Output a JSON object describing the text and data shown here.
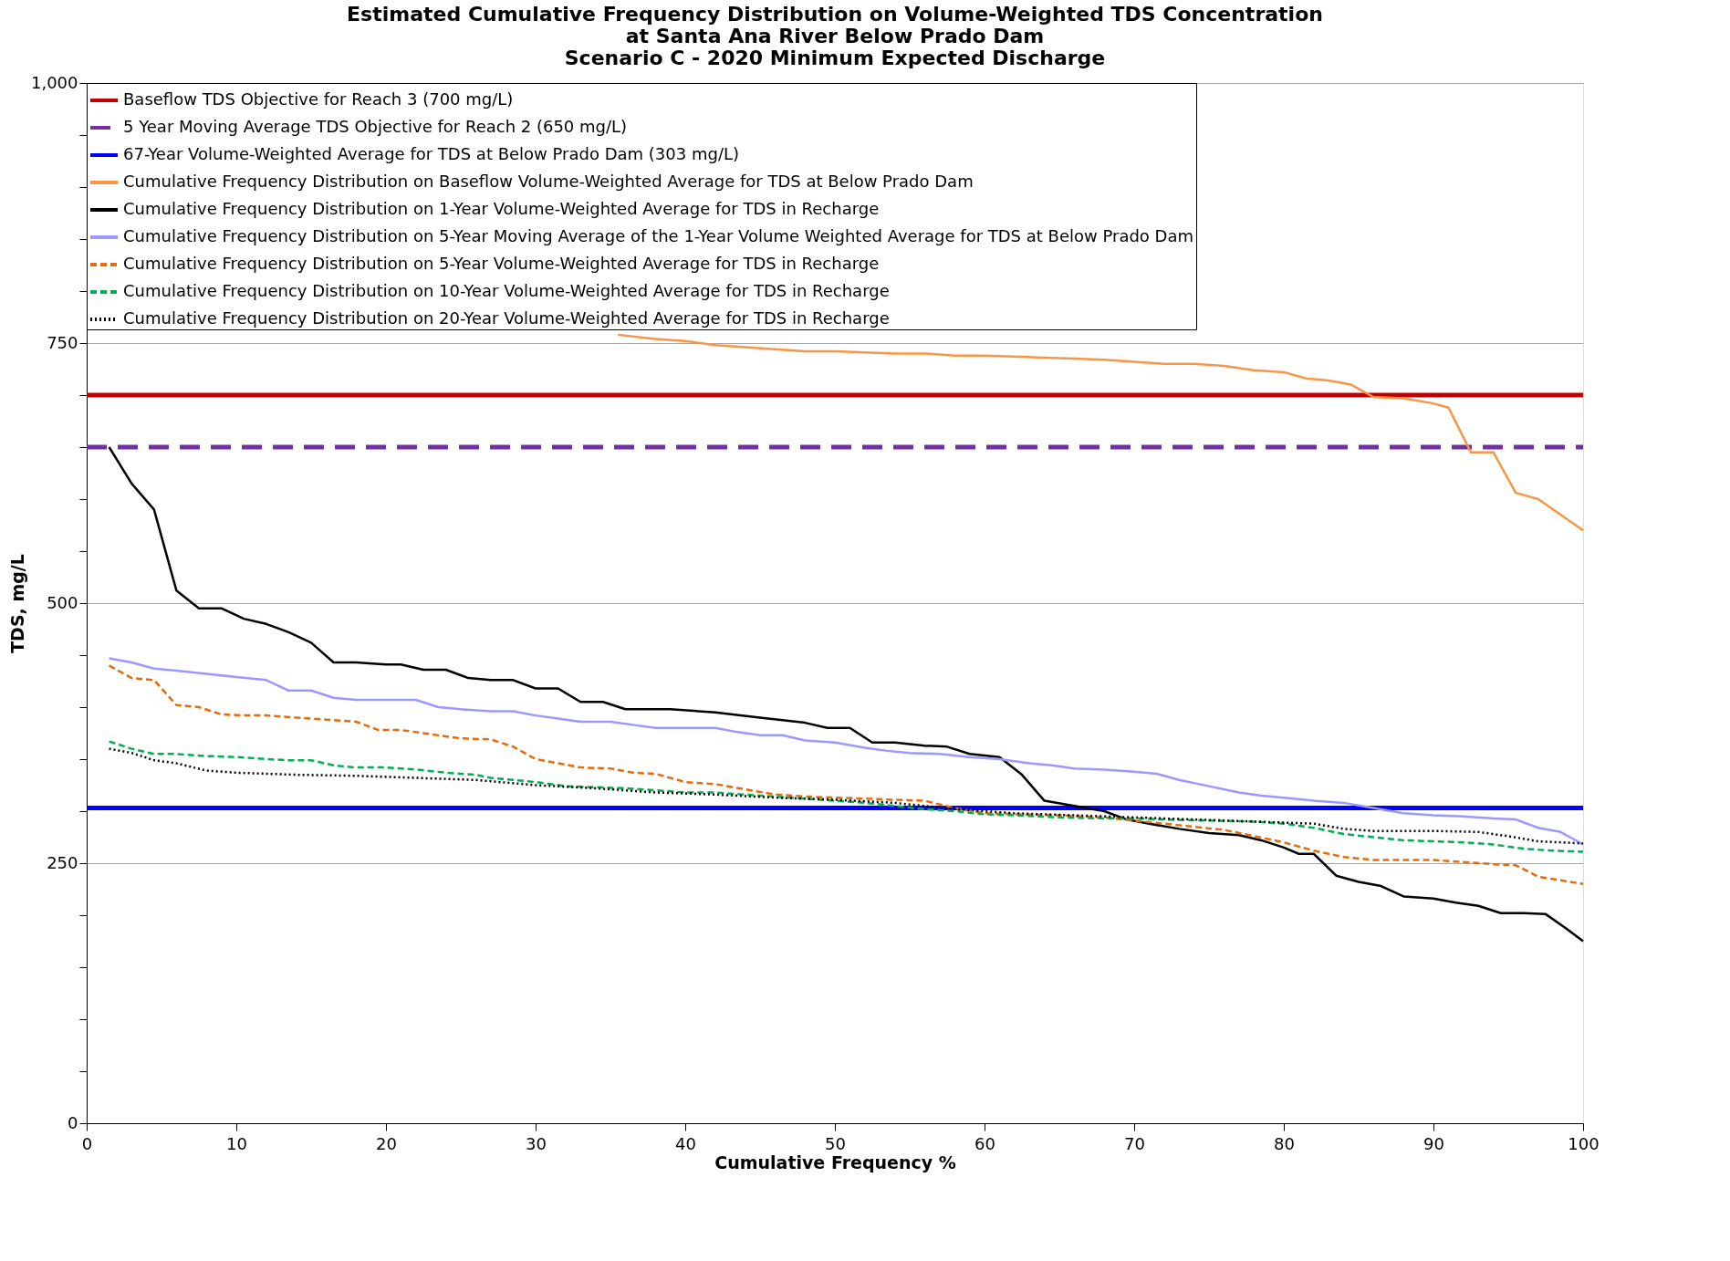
{
  "chart_data": {
    "type": "line",
    "title": "Estimated Cumulative Frequency Distribution on Volume-Weighted TDS Concentration\nat Santa Ana River Below Prado Dam\nScenario C - 2020 Minimum Expected Discharge",
    "xlabel": "Cumulative Frequency %",
    "ylabel": "TDS, mg/L",
    "xlim": [
      0,
      100
    ],
    "xticks": [
      0,
      10,
      20,
      30,
      40,
      50,
      60,
      70,
      80,
      90,
      100
    ],
    "ylim": [
      0,
      1000
    ],
    "yticks": [
      0,
      {
        "value": 50,
        "label": null
      },
      {
        "value": 100,
        "label": null
      },
      {
        "value": 150,
        "label": null
      },
      {
        "value": 200,
        "label": null
      },
      250,
      {
        "value": 300,
        "label": null
      },
      {
        "value": 350,
        "label": null
      },
      {
        "value": 400,
        "label": null
      },
      {
        "value": 450,
        "label": null
      },
      500,
      {
        "value": 550,
        "label": null
      },
      {
        "value": 600,
        "label": null
      },
      {
        "value": 650,
        "label": null
      },
      {
        "value": 700,
        "label": null
      },
      750,
      {
        "value": 800,
        "label": null
      },
      {
        "value": 850,
        "label": null
      },
      {
        "value": 900,
        "label": null
      },
      {
        "value": 950,
        "label": null
      },
      {
        "value": 1000,
        "label": "1,000"
      }
    ],
    "grid": "y",
    "legend": "top",
    "ref_lines": [
      {
        "axis": "y",
        "value": 700,
        "label": "Baseflow TDS Objective for Reach 3 (700 mg/L)",
        "color": "#c00000",
        "line_style": "solid"
      },
      {
        "axis": "y",
        "value": 650,
        "label": "5 Year Moving Average TDS Objective for Reach 2 (650 mg/L)",
        "color": "#7030a0",
        "line_style": "dashed"
      },
      {
        "axis": "y",
        "value": 303,
        "label": "67-Year Volume-Weighted Average for TDS at Below Prado Dam (303 mg/L)",
        "color": "#0000ff",
        "line_style": "solid"
      }
    ],
    "series": [
      {
        "name": "Cumulative Frequency Distribution on Baseflow Volume-Weighted Average for TDS at Below Prado Dam",
        "color": "#f79646",
        "line_style": "solid",
        "x": [
          35.5,
          38,
          40,
          42,
          44,
          46,
          48,
          50,
          52,
          54,
          56,
          58,
          60,
          62,
          64,
          66,
          68,
          70,
          72,
          74,
          76,
          78,
          80,
          81.5,
          83,
          84.5,
          86,
          88,
          90,
          91,
          92.5,
          94,
          95.5,
          97,
          100
        ],
        "values": [
          758,
          754,
          752,
          748,
          746,
          744,
          742,
          742,
          741,
          740,
          740,
          738,
          738,
          737,
          736,
          735,
          734,
          732,
          730,
          730,
          728,
          724,
          722,
          716,
          714,
          710,
          698,
          697,
          692,
          688,
          645,
          645,
          606,
          600,
          570
        ]
      },
      {
        "name": "Cumulative Frequency Distribution on 1-Year Volume-Weighted Average for TDS in Recharge",
        "color": "#000000",
        "line_style": "solid",
        "x": [
          1.5,
          3,
          4.5,
          6,
          7.5,
          9,
          10.5,
          12,
          13.5,
          15,
          16.5,
          18,
          20,
          21,
          22.5,
          24,
          25.5,
          27,
          28.5,
          30,
          31.5,
          33,
          34.5,
          36,
          39,
          42,
          45,
          48,
          49.5,
          51,
          52.5,
          54,
          56,
          57.5,
          59,
          61,
          62.5,
          64,
          66,
          68,
          69.5,
          71,
          73,
          75,
          77,
          78.5,
          80,
          81,
          82,
          83.5,
          85,
          86.5,
          88,
          90,
          91.5,
          93,
          94.5,
          96,
          97.5,
          98.8,
          100
        ],
        "values": [
          650,
          615,
          590,
          512,
          495,
          495,
          485,
          480,
          472,
          462,
          443,
          443,
          441,
          441,
          436,
          436,
          428,
          426,
          426,
          418,
          418,
          405,
          405,
          398,
          398,
          395,
          390,
          385,
          380,
          380,
          366,
          366,
          363,
          362,
          355,
          352,
          335,
          310,
          305,
          300,
          292,
          288,
          283,
          279,
          277,
          272,
          265,
          259,
          259,
          238,
          232,
          228,
          218,
          216,
          212,
          209,
          202,
          202,
          201,
          188,
          175
        ]
      },
      {
        "name": "Cumulative Frequency Distribution on 5-Year Moving Average of the 1-Year Volume Weighted Average for TDS at Below Prado Dam",
        "color": "#9999ff",
        "line_style": "solid",
        "x": [
          1.5,
          3,
          4.5,
          6,
          8,
          10,
          12,
          13.5,
          15,
          16.5,
          18,
          20,
          22,
          23.5,
          25,
          27,
          28.5,
          30,
          31.5,
          33,
          35,
          36.5,
          38,
          40,
          42,
          43.5,
          45,
          46.5,
          48,
          50,
          52,
          53.5,
          55,
          57,
          59,
          61,
          63,
          64.5,
          66,
          68,
          70,
          71.5,
          73,
          75,
          77,
          78.5,
          80,
          82,
          84,
          86,
          88,
          90,
          92,
          94,
          95.5,
          97,
          98.5,
          100
        ],
        "values": [
          447,
          443,
          437,
          435,
          432,
          429,
          426,
          416,
          416,
          409,
          407,
          407,
          407,
          400,
          398,
          396,
          396,
          392,
          389,
          386,
          386,
          383,
          380,
          380,
          380,
          376,
          373,
          373,
          368,
          366,
          361,
          358,
          356,
          355,
          352,
          350,
          346,
          344,
          341,
          340,
          338,
          336,
          330,
          324,
          318,
          315,
          313,
          310,
          308,
          303,
          298,
          296,
          295,
          293,
          292,
          284,
          280,
          268
        ]
      },
      {
        "name": "Cumulative Frequency Distribution on 5-Year Volume-Weighted Average for TDS in Recharge",
        "color": "#e46c0a",
        "line_style": "dashed",
        "x": [
          1.5,
          3,
          4.5,
          6,
          7.5,
          9,
          10.5,
          12,
          14,
          16,
          18,
          19.5,
          21,
          23,
          25,
          27,
          28.5,
          30,
          31.5,
          33,
          35,
          36.5,
          38,
          40,
          42,
          44,
          46,
          48,
          50,
          52,
          54,
          56,
          58,
          60,
          62,
          65,
          68,
          70,
          72,
          74,
          76,
          78,
          80,
          82,
          84,
          86,
          88,
          90,
          92,
          94,
          95.5,
          97,
          100
        ],
        "values": [
          440,
          428,
          426,
          402,
          400,
          393,
          392,
          392,
          390,
          388,
          386,
          378,
          378,
          374,
          370,
          369,
          362,
          350,
          346,
          342,
          341,
          337,
          336,
          328,
          326,
          321,
          316,
          314,
          313,
          312,
          311,
          310,
          303,
          298,
          297,
          296,
          294,
          291,
          288,
          285,
          282,
          276,
          270,
          262,
          256,
          253,
          253,
          253,
          251,
          249,
          248,
          237,
          230
        ]
      },
      {
        "name": "Cumulative Frequency Distribution on 10-Year Volume-Weighted Average for TDS in Recharge",
        "color": "#00b050",
        "line_style": "dashed",
        "x": [
          1.5,
          3,
          4.5,
          6,
          8,
          10,
          12,
          13.5,
          15,
          16.5,
          18,
          20,
          22,
          24,
          26,
          27,
          28.5,
          30,
          32,
          34,
          36,
          38,
          40,
          42,
          44,
          46,
          48,
          50,
          52,
          54,
          56,
          58,
          60,
          62,
          65,
          68,
          70,
          72,
          75,
          78,
          80,
          82,
          84,
          86,
          88,
          90,
          92,
          94,
          96,
          98,
          100
        ],
        "values": [
          367,
          360,
          355,
          355,
          353,
          352,
          350,
          349,
          349,
          344,
          342,
          342,
          340,
          337,
          335,
          332,
          330,
          328,
          324,
          323,
          322,
          320,
          318,
          318,
          316,
          314,
          312,
          310,
          308,
          305,
          302,
          300,
          297,
          296,
          294,
          293,
          293,
          292,
          291,
          290,
          288,
          284,
          278,
          275,
          272,
          271,
          270,
          268,
          264,
          262,
          261
        ]
      },
      {
        "name": "Cumulative Frequency Distribution on 20-Year Volume-Weighted Average for TDS in Recharge",
        "color": "#000000",
        "line_style": "dotted",
        "x": [
          1.5,
          3,
          4.5,
          6,
          8,
          10,
          14,
          18,
          22,
          26,
          30,
          34,
          38,
          42,
          46,
          50,
          54,
          58,
          62,
          66,
          70,
          74,
          78,
          82,
          84,
          86,
          90,
          93,
          95,
          97,
          100
        ],
        "values": [
          360,
          356,
          349,
          346,
          339,
          337,
          335,
          334,
          332,
          330,
          325,
          322,
          318,
          316,
          313,
          311,
          308,
          302,
          298,
          296,
          294,
          292,
          290,
          288,
          283,
          281,
          281,
          280,
          276,
          271,
          269
        ]
      }
    ]
  }
}
